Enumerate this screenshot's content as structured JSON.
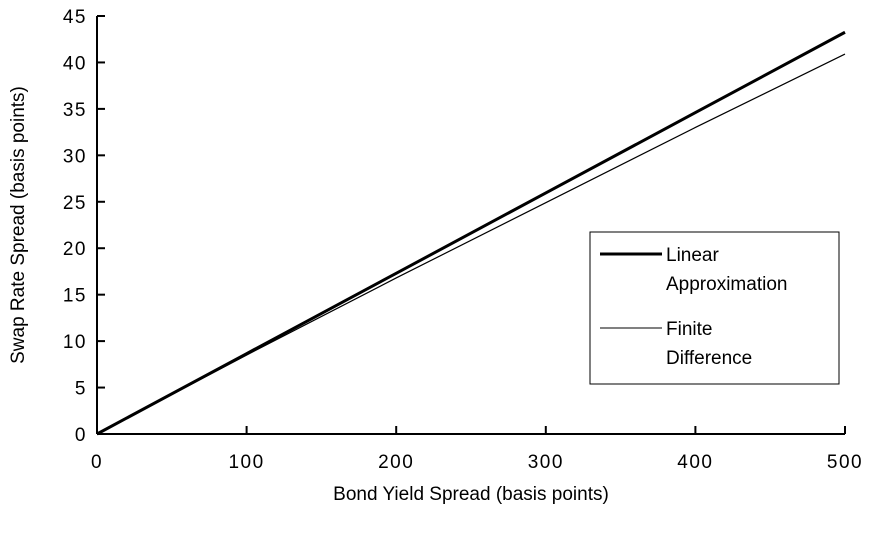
{
  "chart_data": {
    "type": "line",
    "xlabel": "Bond Yield Spread (basis points)",
    "ylabel": "Swap Rate Spread (basis points)",
    "xlim": [
      0,
      500
    ],
    "ylim": [
      0,
      45
    ],
    "xticks": [
      0,
      100,
      200,
      300,
      400,
      500
    ],
    "yticks": [
      0,
      5,
      10,
      15,
      20,
      25,
      30,
      35,
      40,
      45
    ],
    "grid": false,
    "legend_position": "right",
    "series": [
      {
        "name_lines": [
          "Linear",
          "Approximation"
        ],
        "style": "thick",
        "color": "#000000",
        "x": [
          0,
          100,
          200,
          300,
          400,
          500
        ],
        "y": [
          0,
          8.65,
          17.3,
          25.95,
          34.6,
          43.25
        ]
      },
      {
        "name_lines": [
          "Finite",
          "Difference"
        ],
        "style": "thin",
        "color": "#000000",
        "x": [
          0,
          100,
          200,
          300,
          400,
          500
        ],
        "y": [
          0,
          8.5,
          16.8,
          24.9,
          33.0,
          40.9
        ]
      }
    ]
  }
}
